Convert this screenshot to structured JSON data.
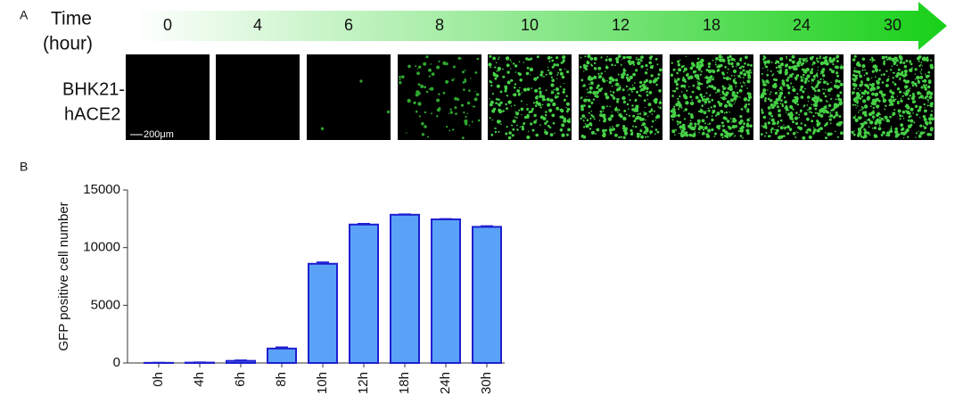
{
  "panel_a": {
    "label": "A",
    "time_label": [
      "Time",
      "(hour)"
    ],
    "time_points": [
      0,
      4,
      6,
      8,
      10,
      12,
      18,
      24,
      30
    ],
    "sample_label": [
      "BHK21-",
      "hACE2"
    ],
    "scale_bar": "200μm"
  },
  "panel_b_label": "B",
  "chart_data": {
    "type": "bar",
    "y_label": "GFP positive cell number",
    "categories": [
      "0h",
      "4h",
      "6h",
      "8h",
      "10h",
      "12h",
      "18h",
      "24h",
      "30h"
    ],
    "values": [
      10,
      30,
      180,
      1250,
      8600,
      12000,
      12850,
      12450,
      11800
    ],
    "errors": [
      5,
      15,
      40,
      100,
      120,
      60,
      30,
      30,
      60
    ],
    "color": "#5aa2f8",
    "edge_color": "#1f1fd0",
    "ylim": [
      0,
      15000
    ],
    "yticks": [
      0,
      5000,
      10000,
      15000
    ],
    "grid": false
  }
}
